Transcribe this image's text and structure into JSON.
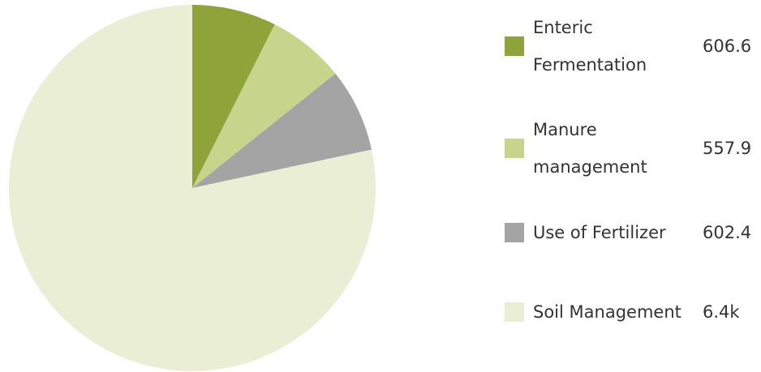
{
  "chart_data": {
    "type": "pie",
    "categories": [
      "Enteric Fermentation",
      "Manure management",
      "Use of Fertilizer",
      "Soil Management"
    ],
    "values": [
      606.6,
      557.9,
      602.4,
      6400
    ],
    "value_labels": [
      "606.6",
      "557.9",
      "602.4",
      "6.4k"
    ],
    "colors": [
      "#8fa33b",
      "#c6d58b",
      "#a4a4a4",
      "#e9eed5"
    ],
    "legend": "right"
  }
}
